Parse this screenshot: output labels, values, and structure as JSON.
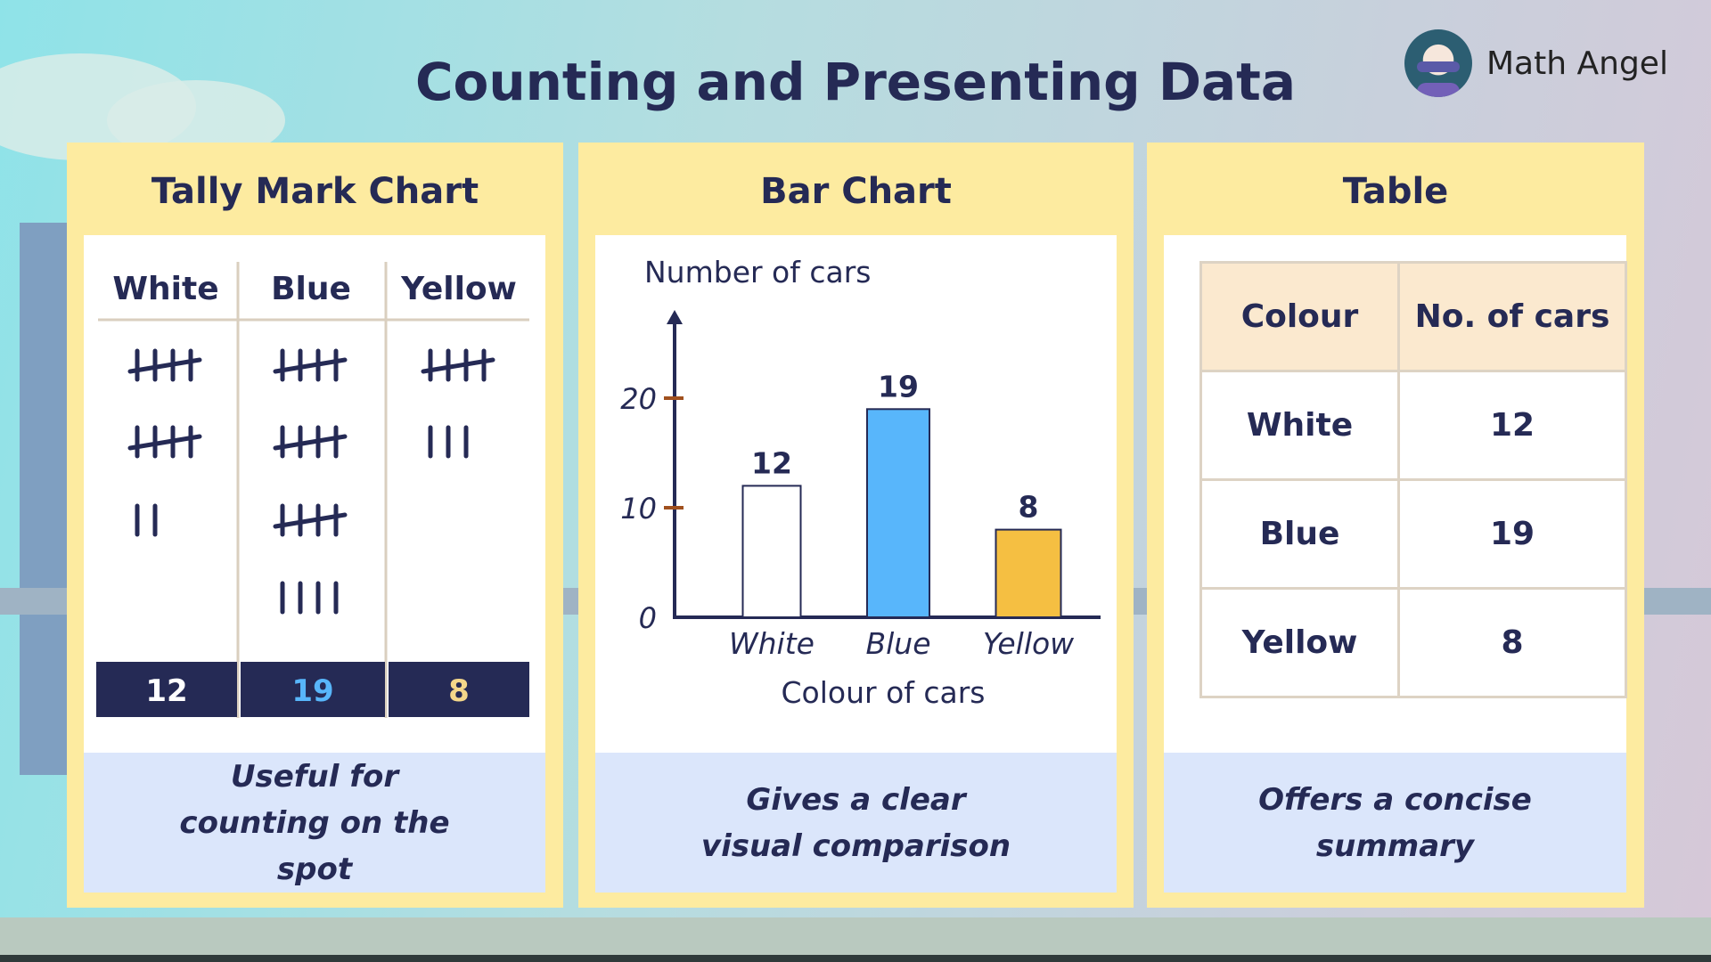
{
  "title": "Counting and Presenting Data",
  "brand": {
    "name": "Math Angel"
  },
  "tally_panel": {
    "heading": "Tally Mark Chart",
    "columns": [
      {
        "label": "White",
        "count": 12,
        "total_color": "#ffffff"
      },
      {
        "label": "Blue",
        "count": 19,
        "total_color": "#58b6fb"
      },
      {
        "label": "Yellow",
        "count": 8,
        "total_color": "#f4d78a"
      }
    ],
    "caption": "Useful for counting on the spot"
  },
  "bar_panel": {
    "heading": "Bar Chart",
    "caption": "Gives a clear visual comparison"
  },
  "table_panel": {
    "heading": "Table",
    "headers": [
      "Colour",
      "No. of cars"
    ],
    "rows": [
      [
        "White",
        "12"
      ],
      [
        "Blue",
        "19"
      ],
      [
        "Yellow",
        "8"
      ]
    ],
    "caption": "Offers a concise summary"
  },
  "chart_data": {
    "type": "bar",
    "ylabel": "Number of cars",
    "xlabel": "Colour of cars",
    "categories": [
      "White",
      "Blue",
      "Yellow"
    ],
    "values": [
      12,
      19,
      8
    ],
    "colors": [
      "#ffffff",
      "#58b6fb",
      "#f5bf42"
    ],
    "yticks": [
      0,
      10,
      20
    ],
    "ylim": [
      0,
      25
    ],
    "grid": false
  }
}
